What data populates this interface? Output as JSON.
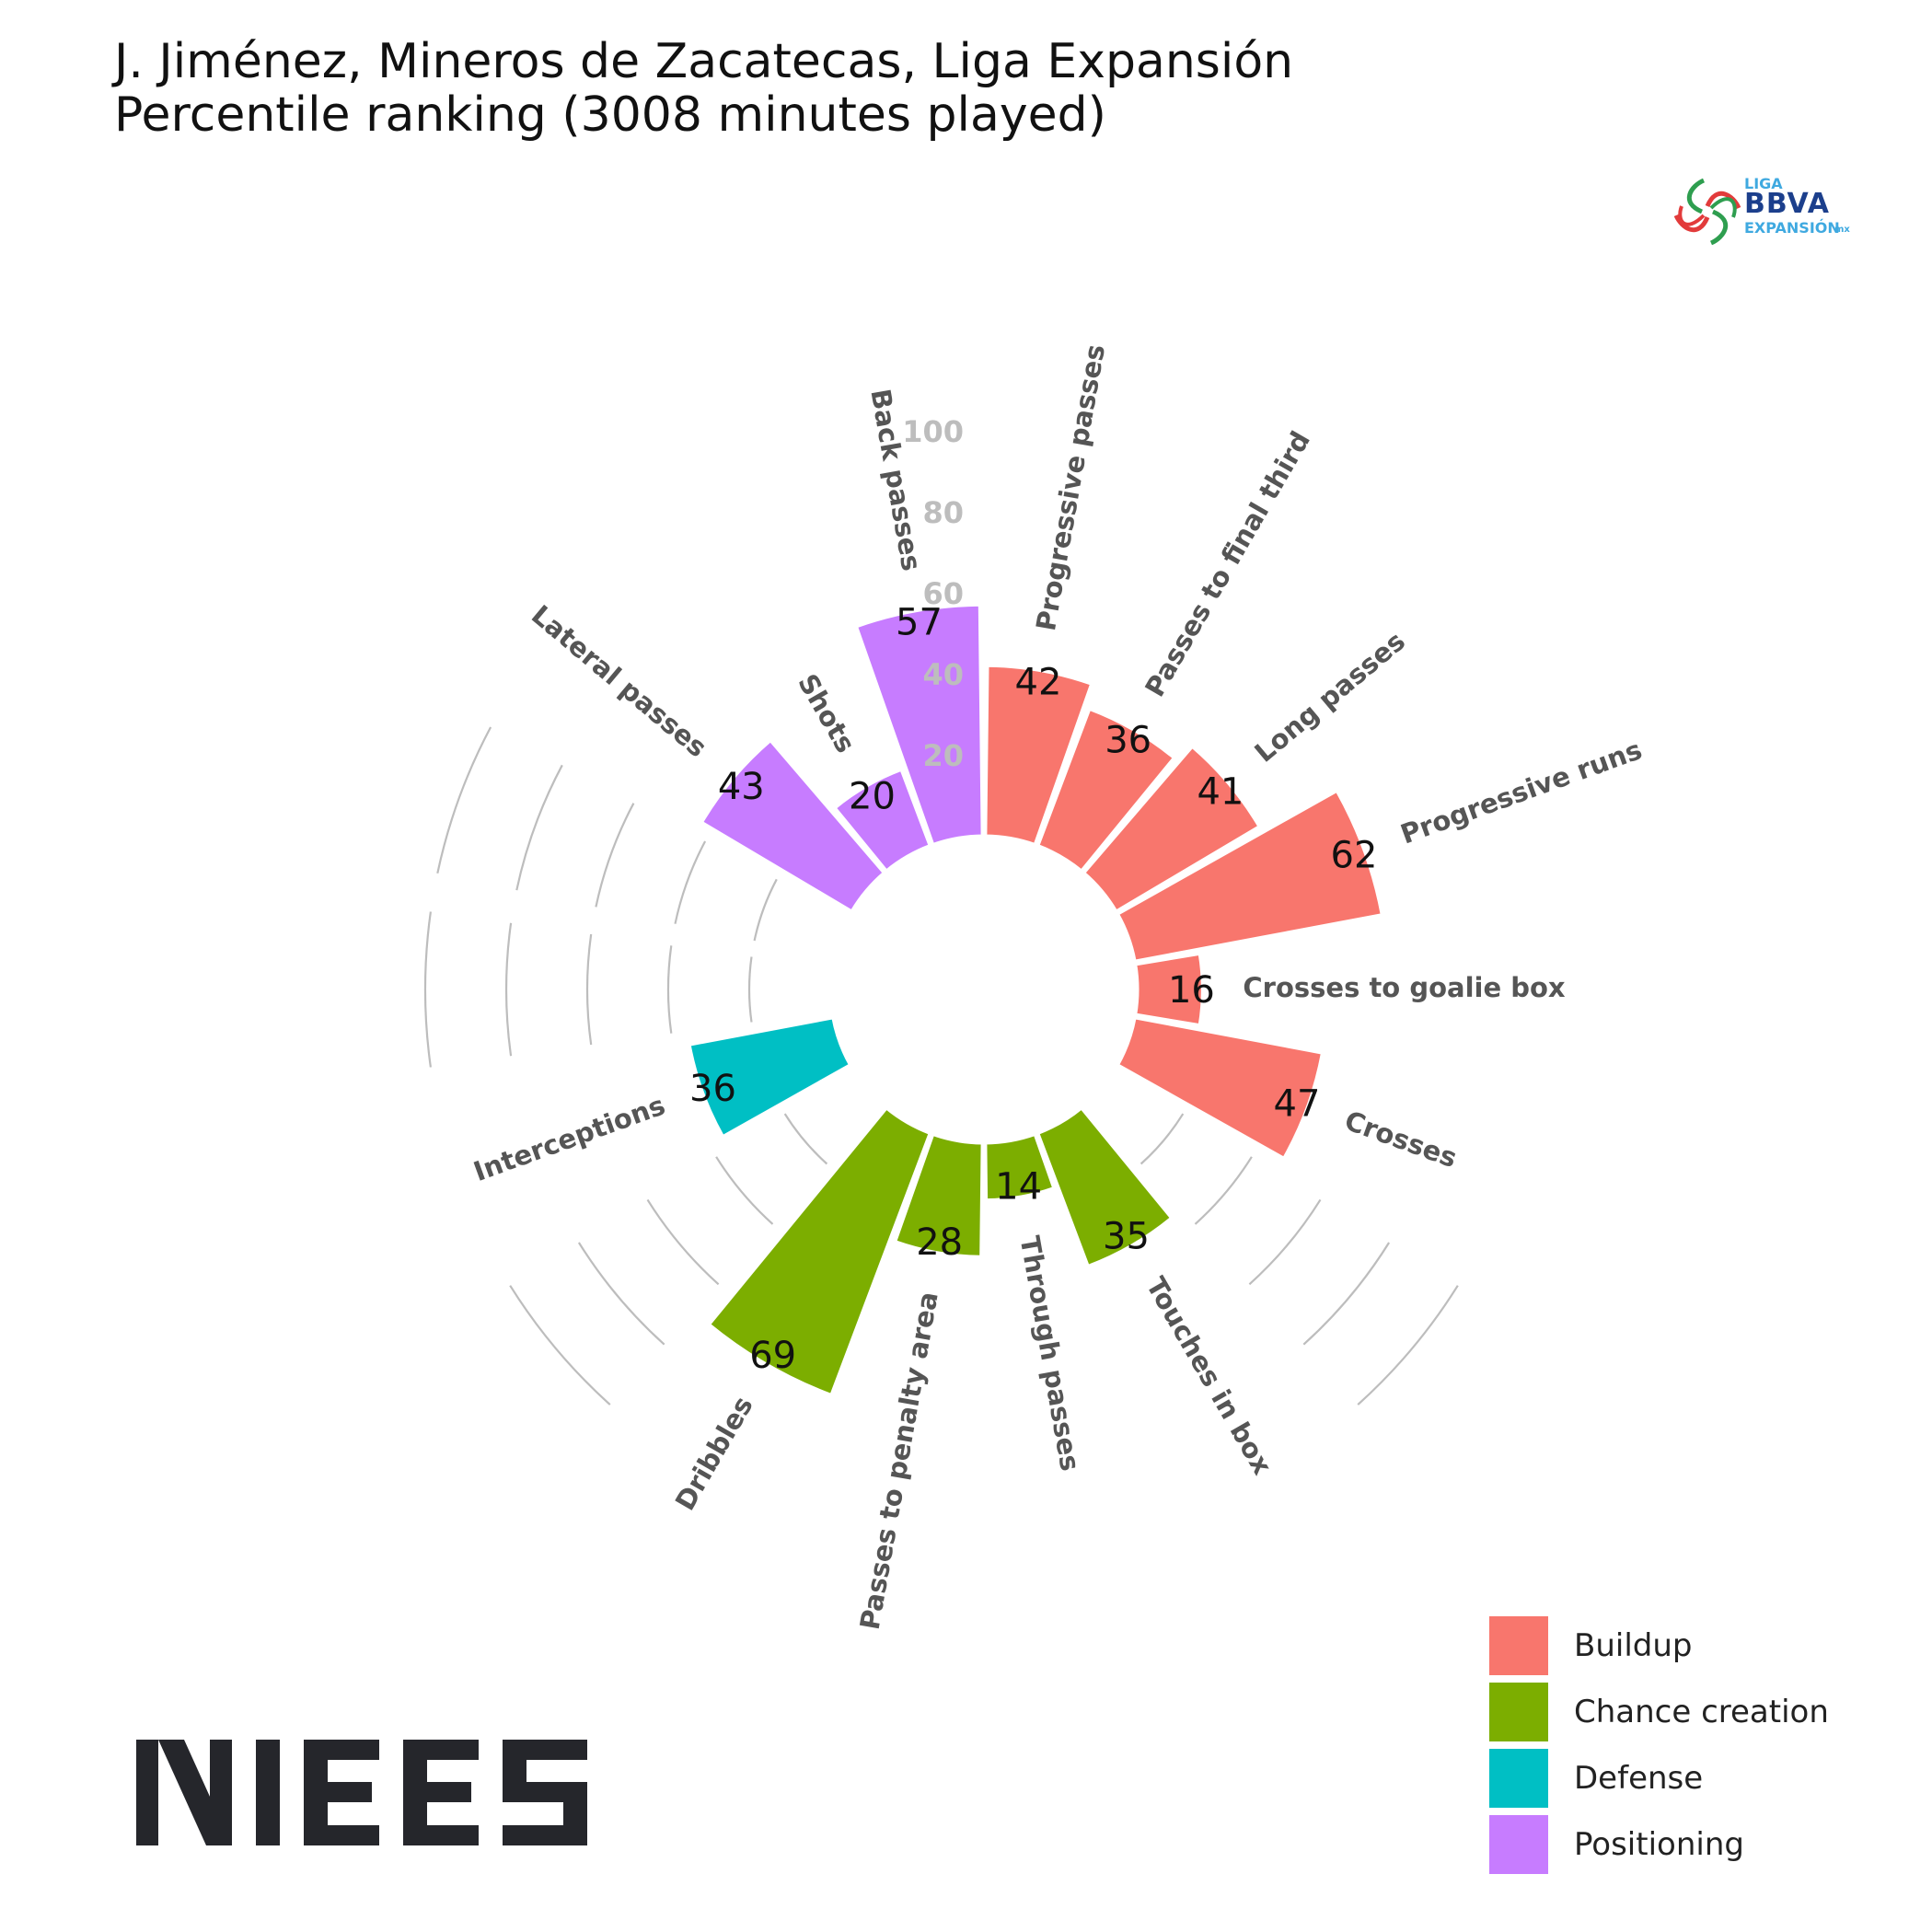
{
  "title": {
    "line1": "J. Jiménez, Mineros de Zacatecas, Liga Expansión",
    "line2": "Percentile ranking (3008 minutes played)"
  },
  "logos": {
    "league": {
      "line1": "LIGA",
      "line2": "BBVA",
      "line3": "EXPANSIÓN",
      "suffix": "mx"
    },
    "brand": "NIES"
  },
  "colors": {
    "Buildup": "#F8766D",
    "Chance creation": "#7CAE00",
    "Defense": "#00BFC4",
    "Positioning": "#C77CFF",
    "grid": "#bdbdbd",
    "axis_text": "#bdbdbd",
    "metric_label": "#555555"
  },
  "legend": {
    "items": [
      {
        "label": "Buildup"
      },
      {
        "label": "Chance creation"
      },
      {
        "label": "Defense"
      },
      {
        "label": "Positioning"
      }
    ]
  },
  "chart_data": {
    "type": "polar-bar",
    "radial_axis": {
      "range": [
        0,
        100
      ],
      "ticks": [
        "20",
        "40",
        "60",
        "80",
        "100"
      ]
    },
    "categories": [
      "Progressive passes",
      "Passes to final third",
      "Long passes",
      "Progressive runs",
      "Crosses to goalie box",
      "Crosses",
      "",
      "Touches in box",
      "Through passes",
      "Passes to penalty area",
      "Dribbles",
      "",
      "Interceptions",
      "",
      "",
      "Lateral passes",
      "Shots",
      "Back passes"
    ],
    "values": [
      42,
      36,
      41,
      62,
      16,
      47,
      null,
      35,
      14,
      28,
      69,
      null,
      36,
      null,
      null,
      43,
      20,
      57
    ],
    "groups": [
      "Buildup",
      "Buildup",
      "Buildup",
      "Buildup",
      "Buildup",
      "Buildup",
      null,
      "Chance creation",
      "Chance creation",
      "Chance creation",
      "Chance creation",
      null,
      "Defense",
      null,
      null,
      "Positioning",
      "Positioning",
      "Positioning"
    ],
    "value_labels": [
      "42",
      "36",
      "41",
      "62",
      "16",
      "47",
      "",
      "35",
      "14",
      "28",
      "69",
      "",
      "36",
      "",
      "",
      "43",
      "20",
      "57"
    ],
    "legend_position": "bottom-right",
    "grid": true
  }
}
